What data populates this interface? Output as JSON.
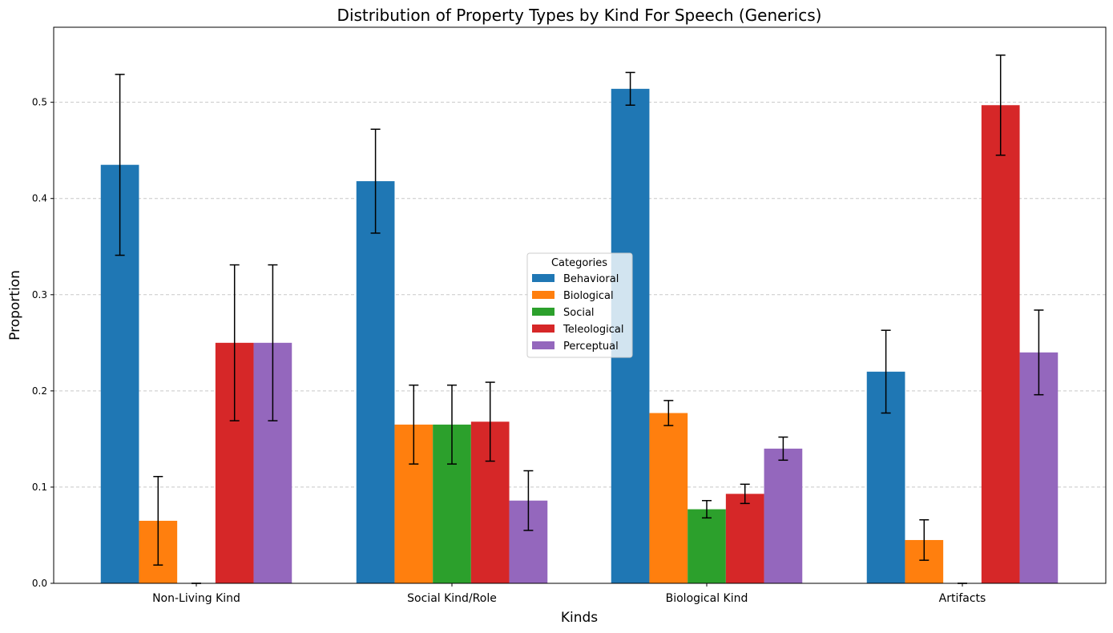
{
  "chart_data": {
    "type": "bar",
    "title": "Distribution of Property Types by Kind For Speech (Generics)",
    "xlabel": "Kinds",
    "ylabel": "Proportion",
    "ylim": [
      0,
      0.578
    ],
    "yticks": [
      "0.0",
      "0.1",
      "0.2",
      "0.3",
      "0.4",
      "0.5"
    ],
    "grid": "y-dashed",
    "categories": [
      "Non-Living Kind",
      "Social Kind/Role",
      "Biological Kind",
      "Artifacts"
    ],
    "legend": {
      "title": "Categories",
      "placement": "center"
    },
    "series": [
      {
        "name": "Behavioral",
        "color": "#1f77b4",
        "values": [
          0.435,
          0.418,
          0.514,
          0.22
        ],
        "errors": [
          0.094,
          0.054,
          0.017,
          0.043
        ]
      },
      {
        "name": "Biological",
        "color": "#ff7f0e",
        "values": [
          0.065,
          0.165,
          0.177,
          0.045
        ],
        "errors": [
          0.046,
          0.041,
          0.013,
          0.021
        ]
      },
      {
        "name": "Social",
        "color": "#2ca02c",
        "values": [
          0.0,
          0.165,
          0.077,
          0.0
        ],
        "errors": [
          0.0,
          0.041,
          0.009,
          0.0
        ]
      },
      {
        "name": "Teleological",
        "color": "#d62728",
        "values": [
          0.25,
          0.168,
          0.093,
          0.497
        ],
        "errors": [
          0.081,
          0.041,
          0.01,
          0.052
        ]
      },
      {
        "name": "Perceptual",
        "color": "#9467bd",
        "values": [
          0.25,
          0.086,
          0.14,
          0.24
        ],
        "errors": [
          0.081,
          0.031,
          0.012,
          0.044
        ]
      }
    ]
  }
}
